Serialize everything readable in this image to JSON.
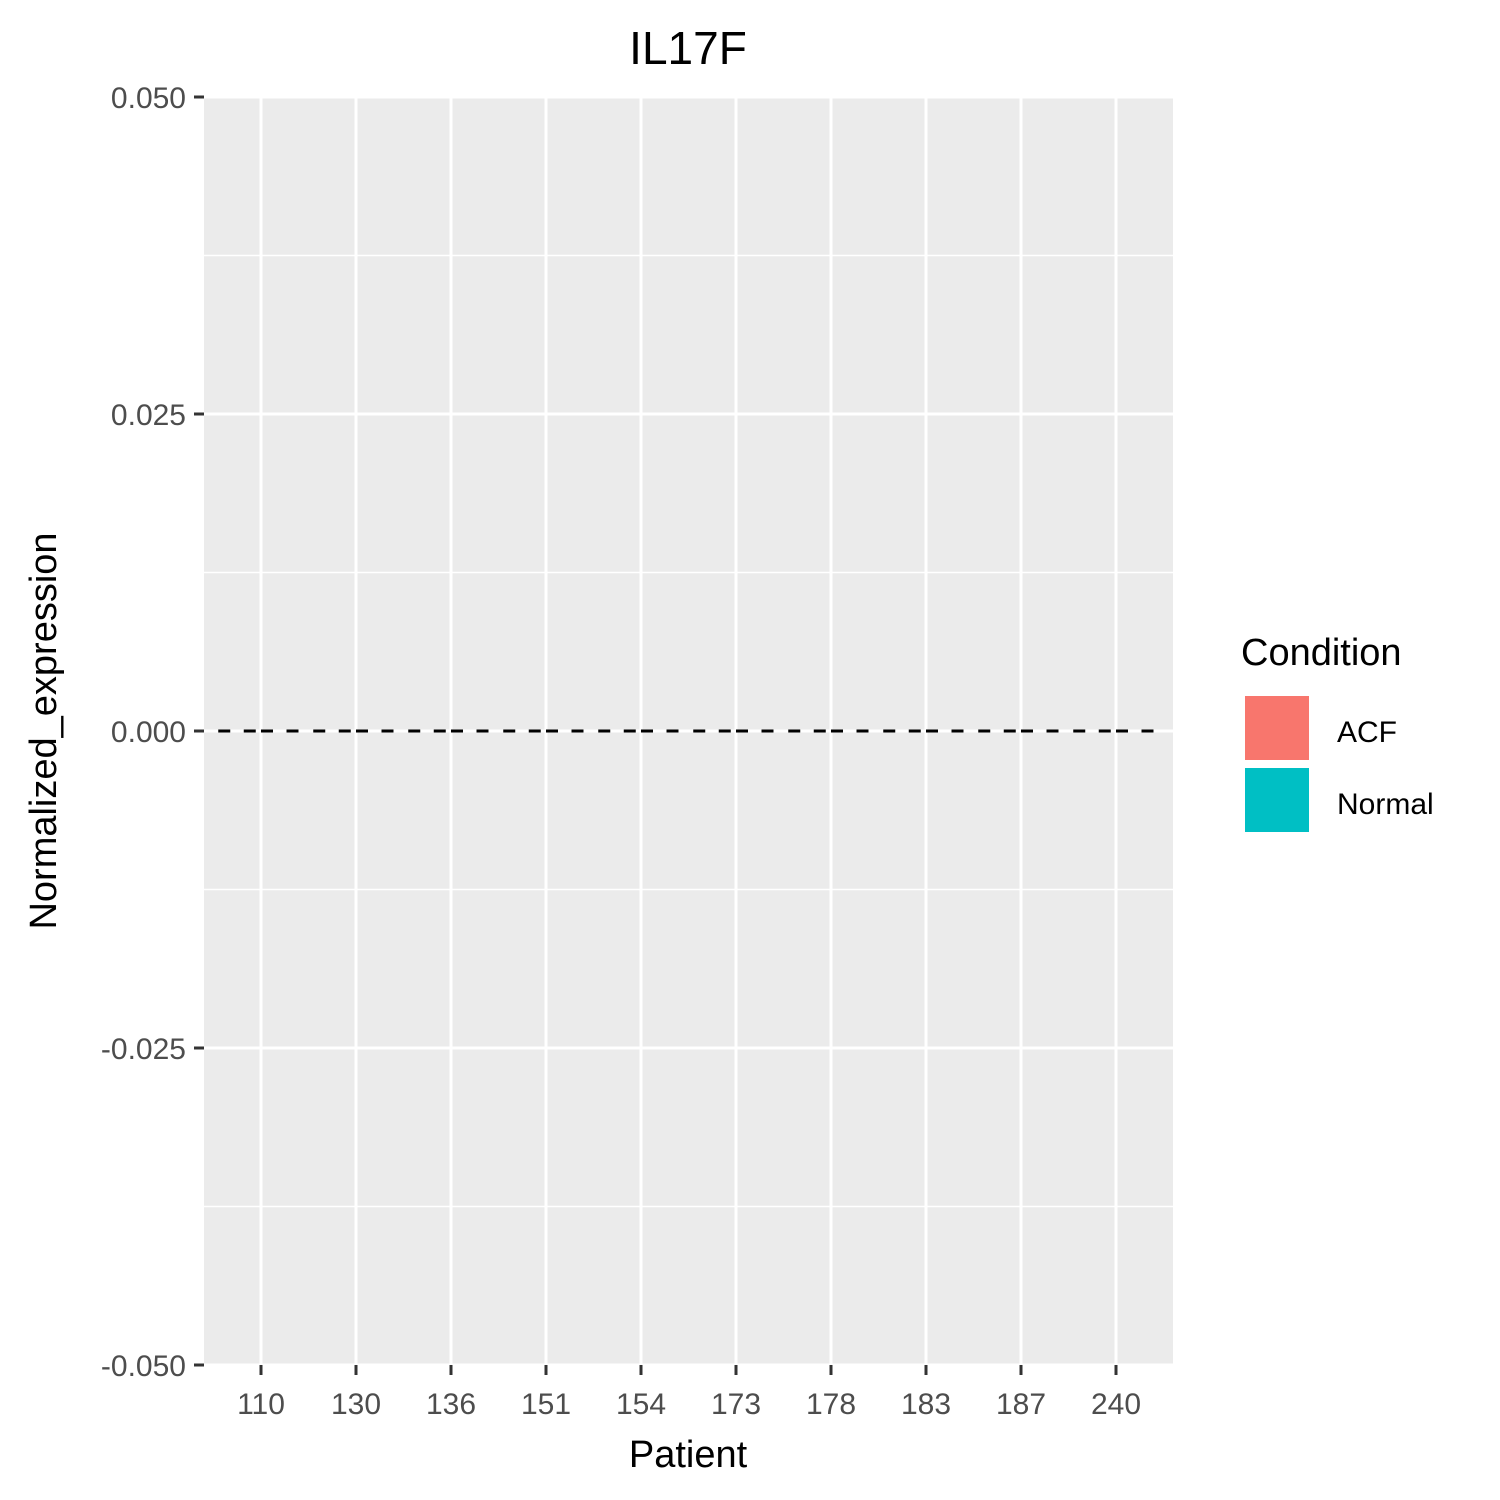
{
  "chart_data": {
    "type": "bar",
    "title": "IL17F",
    "xlabel": "Patient",
    "ylabel": "Normalized_expression",
    "categories": [
      "110",
      "130",
      "136",
      "151",
      "154",
      "173",
      "178",
      "183",
      "187",
      "240"
    ],
    "y_ticks": [
      "0.050",
      "0.025",
      "0.000",
      "-0.025",
      "-0.050"
    ],
    "ylim": [
      -0.05,
      0.05
    ],
    "grid": true,
    "bar_position": "dodge",
    "series": [
      {
        "name": "ACF",
        "color": "#F8766D",
        "values": [
          0,
          0,
          0,
          0,
          0,
          0,
          0,
          0,
          0,
          0
        ]
      },
      {
        "name": "Normal",
        "color": "#00BFC4",
        "values": [
          0,
          0,
          0,
          0,
          0,
          0,
          0,
          0,
          0,
          0
        ]
      }
    ],
    "legend": {
      "title": "Condition",
      "position": "right",
      "items": [
        {
          "label": "ACF",
          "color": "#F8766D"
        },
        {
          "label": "Normal",
          "color": "#00BFC4"
        }
      ]
    }
  }
}
